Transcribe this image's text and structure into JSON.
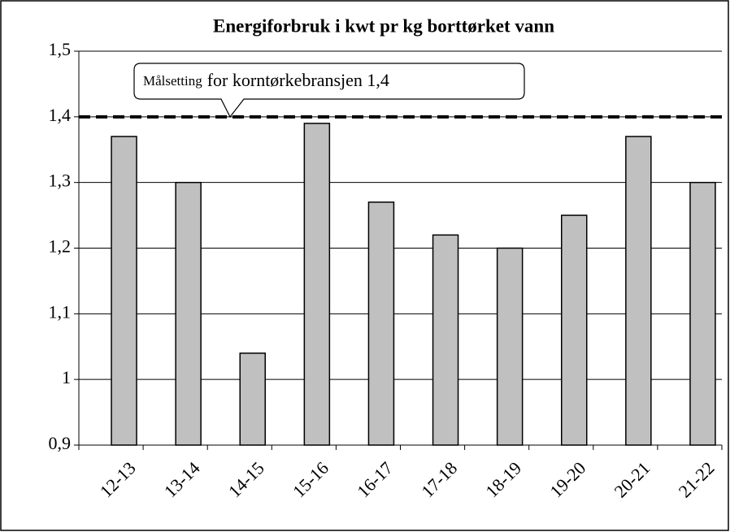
{
  "chart_data": {
    "type": "bar",
    "title": "Energiforbruk i kwt pr kg borttørket vann",
    "categories": [
      "12-13",
      "13-14",
      "14-15",
      "15-16",
      "16-17",
      "17-18",
      "18-19",
      "19-20",
      "20-21",
      "21-22"
    ],
    "values": [
      1.37,
      1.3,
      1.04,
      1.39,
      1.27,
      1.22,
      1.2,
      1.25,
      1.37,
      1.3
    ],
    "color": "#c0c0c0",
    "ylim": [
      0.9,
      1.5
    ],
    "yticks": [
      {
        "value": 0.9,
        "label": "0,9"
      },
      1,
      {
        "value": 1.1,
        "label": "1,1"
      },
      {
        "value": 1.2,
        "label": "1,2"
      },
      {
        "value": 1.3,
        "label": "1,3"
      },
      {
        "value": 1.4,
        "label": "1,4"
      },
      {
        "value": 1.5,
        "label": "1,5"
      }
    ],
    "grid": true,
    "target": 1.4,
    "annotation": {
      "prefix": "Målsetting",
      "text": "for korntørkebransjen 1,4"
    }
  }
}
